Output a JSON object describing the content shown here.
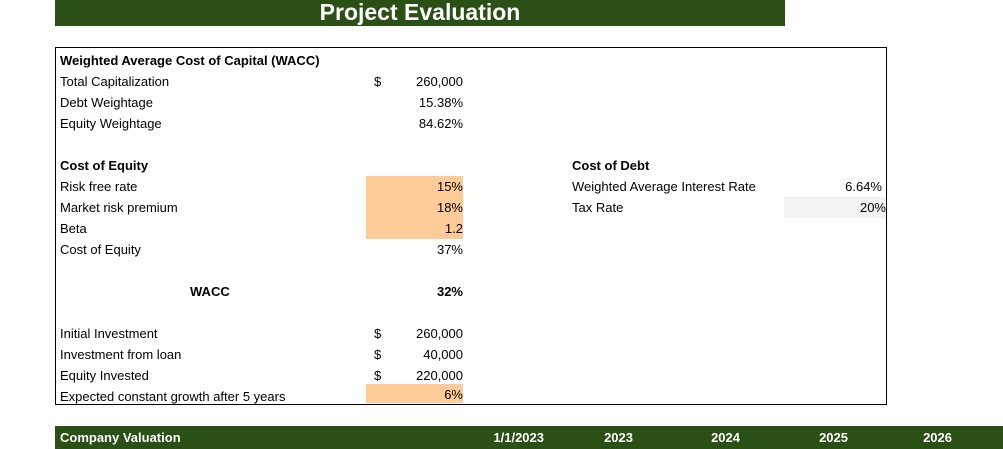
{
  "title": "Project Evaluation",
  "wacc_section": {
    "heading": "Weighted Average Cost of Capital (WACC)",
    "rows": [
      {
        "label": "Total Capitalization",
        "currency": "$",
        "value": "260,000"
      },
      {
        "label": "Debt Weightage",
        "currency": "",
        "value": "15.38%"
      },
      {
        "label": "Equity Weightage",
        "currency": "",
        "value": "84.62%"
      }
    ]
  },
  "cost_of_equity": {
    "heading": "Cost of Equity",
    "rows": [
      {
        "label": "Risk free rate",
        "value": "15%"
      },
      {
        "label": "Market risk premium",
        "value": "18%"
      },
      {
        "label": "Beta",
        "value": "1.2"
      },
      {
        "label": "Cost of Equity",
        "value": "37%"
      }
    ]
  },
  "cost_of_debt": {
    "heading": "Cost of Debt",
    "rows": [
      {
        "label": "Weighted Average Interest Rate",
        "value": "6.64%"
      },
      {
        "label": "Tax Rate",
        "value": "20%"
      }
    ]
  },
  "wacc": {
    "label": "WACC",
    "value": "32%"
  },
  "investment": {
    "rows": [
      {
        "label": "Initial Investment",
        "currency": "$",
        "value": "260,000"
      },
      {
        "label": "Investment from loan",
        "currency": "$",
        "value": "40,000"
      },
      {
        "label": "Equity Invested",
        "currency": "$",
        "value": "220,000"
      },
      {
        "label": "Expected constant growth after 5 years",
        "currency": "",
        "value": "6%"
      }
    ]
  },
  "valuation_header": {
    "label": "Company Valuation",
    "columns": [
      "1/1/2023",
      "2023",
      "2024",
      "2025",
      "2026"
    ]
  },
  "colors": {
    "header_green": "#2a5016",
    "input_orange": "#ffcc99",
    "input_gray": "#f2f2f2"
  }
}
